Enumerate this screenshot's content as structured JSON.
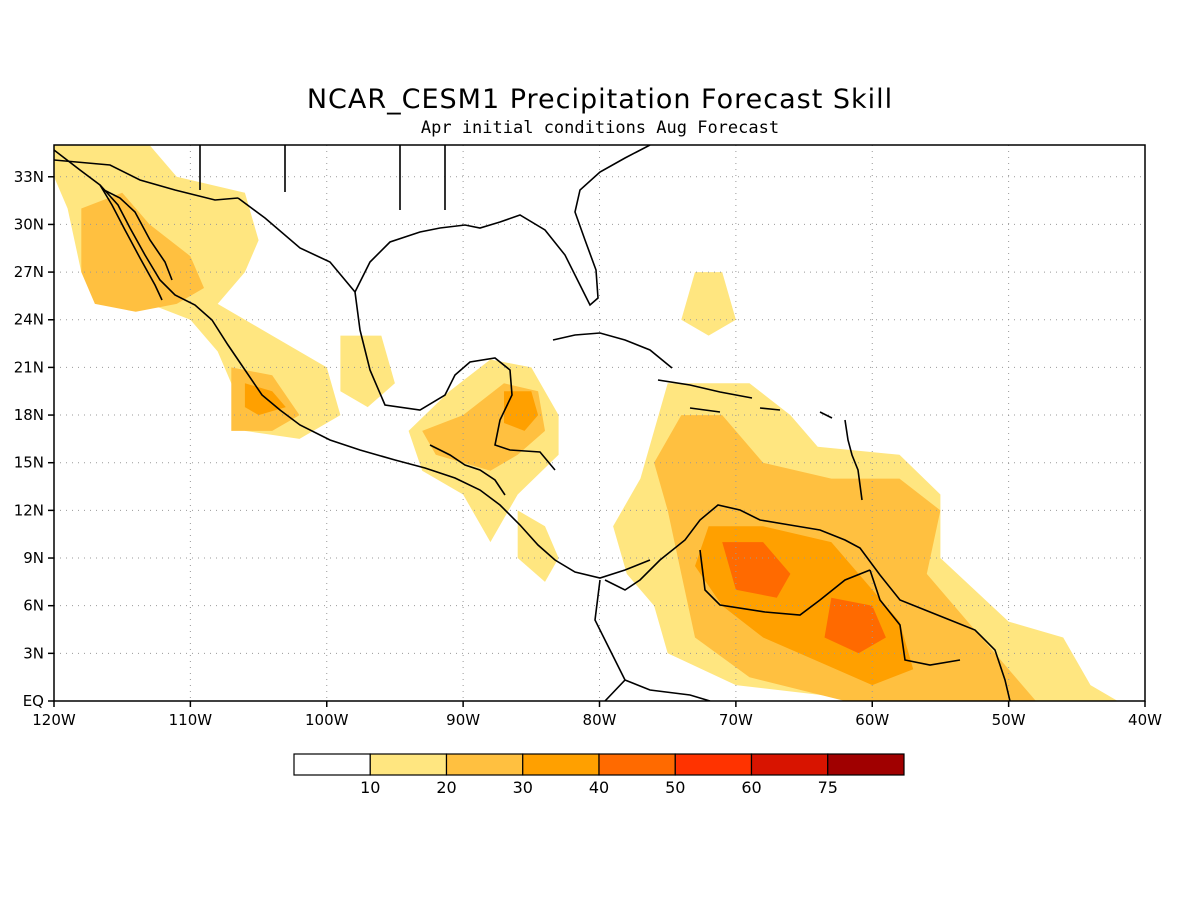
{
  "title": "NCAR_CESM1 Precipitation Forecast Skill",
  "subtitle": "Apr initial conditions   Aug Forecast",
  "map": {
    "lon_range": [
      -120,
      -40
    ],
    "lat_range": [
      0,
      35
    ],
    "x_ticks": [
      {
        "value": -120,
        "label": "120W"
      },
      {
        "value": -110,
        "label": "110W"
      },
      {
        "value": -100,
        "label": "100W"
      },
      {
        "value": -90,
        "label": "90W"
      },
      {
        "value": -80,
        "label": "80W"
      },
      {
        "value": -70,
        "label": "70W"
      },
      {
        "value": -60,
        "label": "60W"
      },
      {
        "value": -50,
        "label": "50W"
      },
      {
        "value": -40,
        "label": "40W"
      }
    ],
    "y_ticks": [
      {
        "value": 0,
        "label": "EQ"
      },
      {
        "value": 3,
        "label": "3N"
      },
      {
        "value": 6,
        "label": "6N"
      },
      {
        "value": 9,
        "label": "9N"
      },
      {
        "value": 12,
        "label": "12N"
      },
      {
        "value": 15,
        "label": "15N"
      },
      {
        "value": 18,
        "label": "18N"
      },
      {
        "value": 21,
        "label": "21N"
      },
      {
        "value": 24,
        "label": "24N"
      },
      {
        "value": 27,
        "label": "27N"
      },
      {
        "value": 30,
        "label": "30N"
      },
      {
        "value": 33,
        "label": "33N"
      }
    ],
    "grid": "dotted"
  },
  "colorbar": {
    "colors": [
      "#ffffff",
      "#ffe680",
      "#ffc040",
      "#ffa000",
      "#ff6a00",
      "#ff3300",
      "#d81400",
      "#a00000"
    ],
    "labels": [
      "10",
      "20",
      "30",
      "40",
      "50",
      "60",
      "75"
    ]
  },
  "skill_regions": [
    {
      "level": 1,
      "pts": [
        [
          -120,
          35
        ],
        [
          -113,
          35
        ],
        [
          -111,
          33
        ],
        [
          -106,
          32
        ],
        [
          -105,
          29
        ],
        [
          -106,
          27
        ],
        [
          -108,
          25
        ],
        [
          -104,
          23
        ],
        [
          -100,
          21
        ],
        [
          -99,
          18
        ],
        [
          -102,
          16.5
        ],
        [
          -106,
          17
        ],
        [
          -107,
          20
        ],
        [
          -108,
          22
        ],
        [
          -110,
          24
        ],
        [
          -113,
          25
        ],
        [
          -115,
          25
        ],
        [
          -118,
          27
        ],
        [
          -119,
          31
        ],
        [
          -120,
          33
        ]
      ]
    },
    {
      "level": 2,
      "pts": [
        [
          -118,
          31
        ],
        [
          -115,
          32
        ],
        [
          -113,
          30
        ],
        [
          -110,
          28
        ],
        [
          -109,
          26
        ],
        [
          -111,
          25
        ],
        [
          -114,
          24.5
        ],
        [
          -117,
          25
        ],
        [
          -118,
          27
        ]
      ]
    },
    {
      "level": 2,
      "pts": [
        [
          -107,
          21
        ],
        [
          -104,
          20.5
        ],
        [
          -102,
          18
        ],
        [
          -104,
          17
        ],
        [
          -107,
          17
        ]
      ]
    },
    {
      "level": 3,
      "pts": [
        [
          -106,
          20
        ],
        [
          -104,
          19.5
        ],
        [
          -103,
          18.5
        ],
        [
          -105,
          18
        ],
        [
          -106,
          18.5
        ]
      ]
    },
    {
      "level": 1,
      "pts": [
        [
          -99,
          23
        ],
        [
          -96,
          23
        ],
        [
          -95,
          20
        ],
        [
          -97,
          18.5
        ],
        [
          -99,
          19.5
        ]
      ]
    },
    {
      "level": 1,
      "pts": [
        [
          -94,
          17
        ],
        [
          -91,
          19.5
        ],
        [
          -88,
          21.5
        ],
        [
          -85,
          21
        ],
        [
          -83,
          18
        ],
        [
          -83,
          15.5
        ],
        [
          -86,
          13
        ],
        [
          -88,
          10
        ],
        [
          -90,
          13
        ],
        [
          -93,
          14.5
        ]
      ]
    },
    {
      "level": 2,
      "pts": [
        [
          -93,
          17
        ],
        [
          -90,
          18
        ],
        [
          -87,
          20
        ],
        [
          -84.5,
          19.5
        ],
        [
          -84,
          17
        ],
        [
          -86,
          15.5
        ],
        [
          -88,
          14.5
        ],
        [
          -90,
          15
        ],
        [
          -92,
          15.5
        ]
      ]
    },
    {
      "level": 3,
      "pts": [
        [
          -87,
          19.5
        ],
        [
          -85,
          19.5
        ],
        [
          -84.5,
          18
        ],
        [
          -85.5,
          17
        ],
        [
          -87,
          17.5
        ]
      ]
    },
    {
      "level": 1,
      "pts": [
        [
          -86,
          12
        ],
        [
          -84,
          11
        ],
        [
          -83,
          9
        ],
        [
          -84,
          7.5
        ],
        [
          -86,
          9
        ]
      ]
    },
    {
      "level": 1,
      "pts": [
        [
          -73,
          27
        ],
        [
          -71,
          27
        ],
        [
          -70,
          24
        ],
        [
          -72,
          23
        ],
        [
          -74,
          24
        ]
      ]
    },
    {
      "level": 1,
      "pts": [
        [
          -75,
          20
        ],
        [
          -69,
          20
        ],
        [
          -66,
          18
        ],
        [
          -64,
          16
        ],
        [
          -58,
          15.5
        ],
        [
          -55,
          13
        ],
        [
          -55,
          9
        ],
        [
          -50,
          5
        ],
        [
          -46,
          4
        ],
        [
          -44,
          1
        ],
        [
          -42,
          0
        ],
        [
          -60,
          0
        ],
        [
          -70,
          1
        ],
        [
          -75,
          3
        ],
        [
          -76,
          6
        ],
        [
          -78,
          8
        ],
        [
          -79,
          11
        ],
        [
          -77,
          14
        ]
      ]
    },
    {
      "level": 2,
      "pts": [
        [
          -74,
          18
        ],
        [
          -71,
          18
        ],
        [
          -68,
          15
        ],
        [
          -63,
          14
        ],
        [
          -58,
          14
        ],
        [
          -55,
          12
        ],
        [
          -56,
          8
        ],
        [
          -53,
          5
        ],
        [
          -50,
          2
        ],
        [
          -48,
          0
        ],
        [
          -62,
          0
        ],
        [
          -69,
          1.5
        ],
        [
          -73,
          4
        ],
        [
          -74,
          8
        ],
        [
          -75,
          12
        ],
        [
          -76,
          15
        ]
      ]
    },
    {
      "level": 3,
      "pts": [
        [
          -72,
          11
        ],
        [
          -68,
          11
        ],
        [
          -63,
          10
        ],
        [
          -60,
          7
        ],
        [
          -58,
          5
        ],
        [
          -57,
          2
        ],
        [
          -60,
          1
        ],
        [
          -64,
          2.5
        ],
        [
          -68,
          4
        ],
        [
          -71,
          6
        ],
        [
          -73,
          8.5
        ]
      ]
    },
    {
      "level": 4,
      "pts": [
        [
          -71,
          10
        ],
        [
          -68,
          10
        ],
        [
          -66,
          8
        ],
        [
          -67,
          6.5
        ],
        [
          -70,
          7
        ]
      ]
    },
    {
      "level": 4,
      "pts": [
        [
          -63,
          6.5
        ],
        [
          -60,
          6
        ],
        [
          -59,
          4
        ],
        [
          -61,
          3
        ],
        [
          -63.5,
          4
        ]
      ]
    }
  ]
}
